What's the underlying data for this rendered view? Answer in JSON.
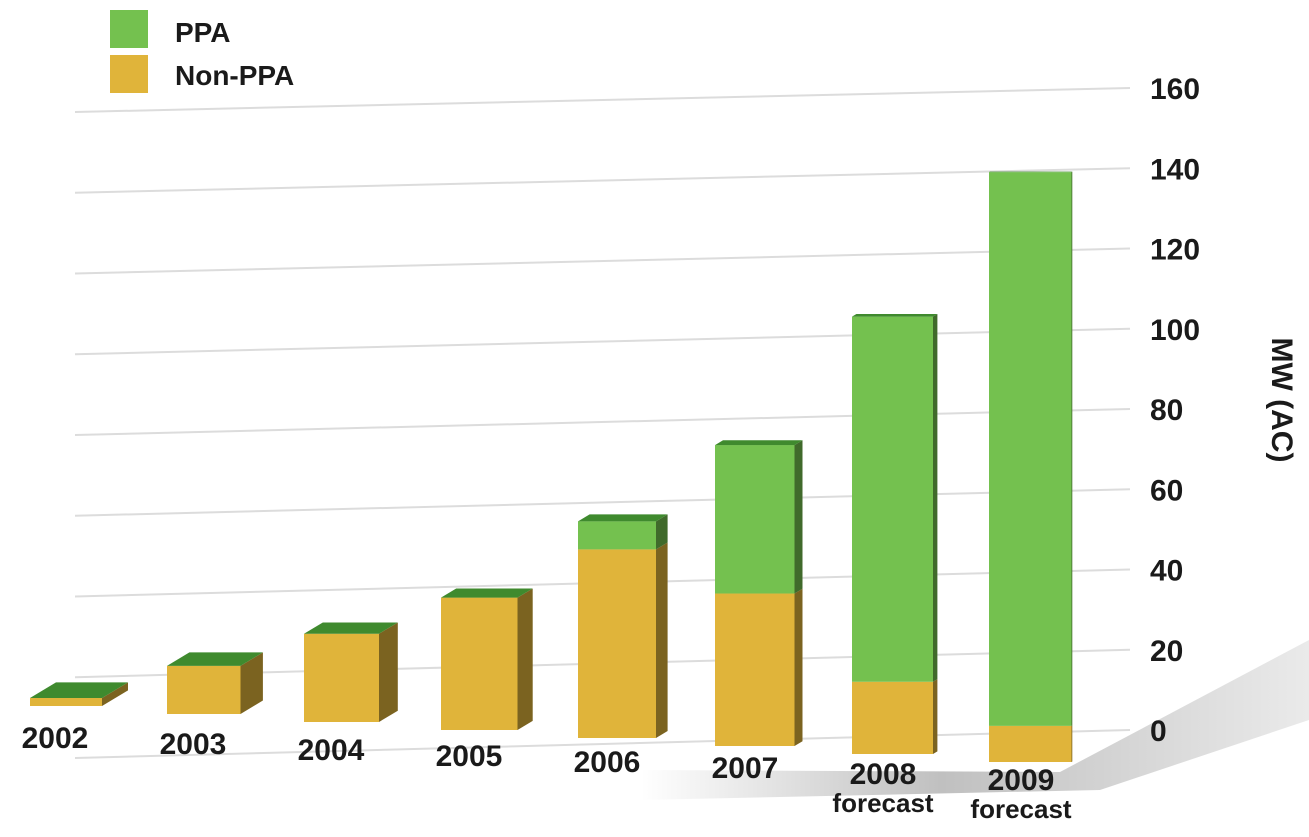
{
  "chart_data": {
    "type": "bar",
    "stacked": true,
    "style": "3d",
    "categories": [
      "2002",
      "2003",
      "2004",
      "2005",
      "2006",
      "2007",
      "2008",
      "2009"
    ],
    "category_sublabels": [
      "",
      "",
      "",
      "",
      "",
      "",
      "forecast",
      "forecast"
    ],
    "series": [
      {
        "name": "Non-PPA",
        "color": "#e0b43a",
        "values": [
          2,
          12,
          22,
          33,
          47,
          38,
          18,
          9
        ]
      },
      {
        "name": "PPA",
        "color": "#74c14f",
        "values": [
          0,
          0,
          0,
          0,
          7,
          37,
          91,
          138
        ]
      }
    ],
    "ylabel": "MW (AC)",
    "ylim": [
      0,
      160
    ],
    "yticks": [
      0,
      20,
      40,
      60,
      80,
      100,
      120,
      140,
      160
    ],
    "grid": true,
    "legend_position": "top-left",
    "y_axis_side": "right"
  }
}
